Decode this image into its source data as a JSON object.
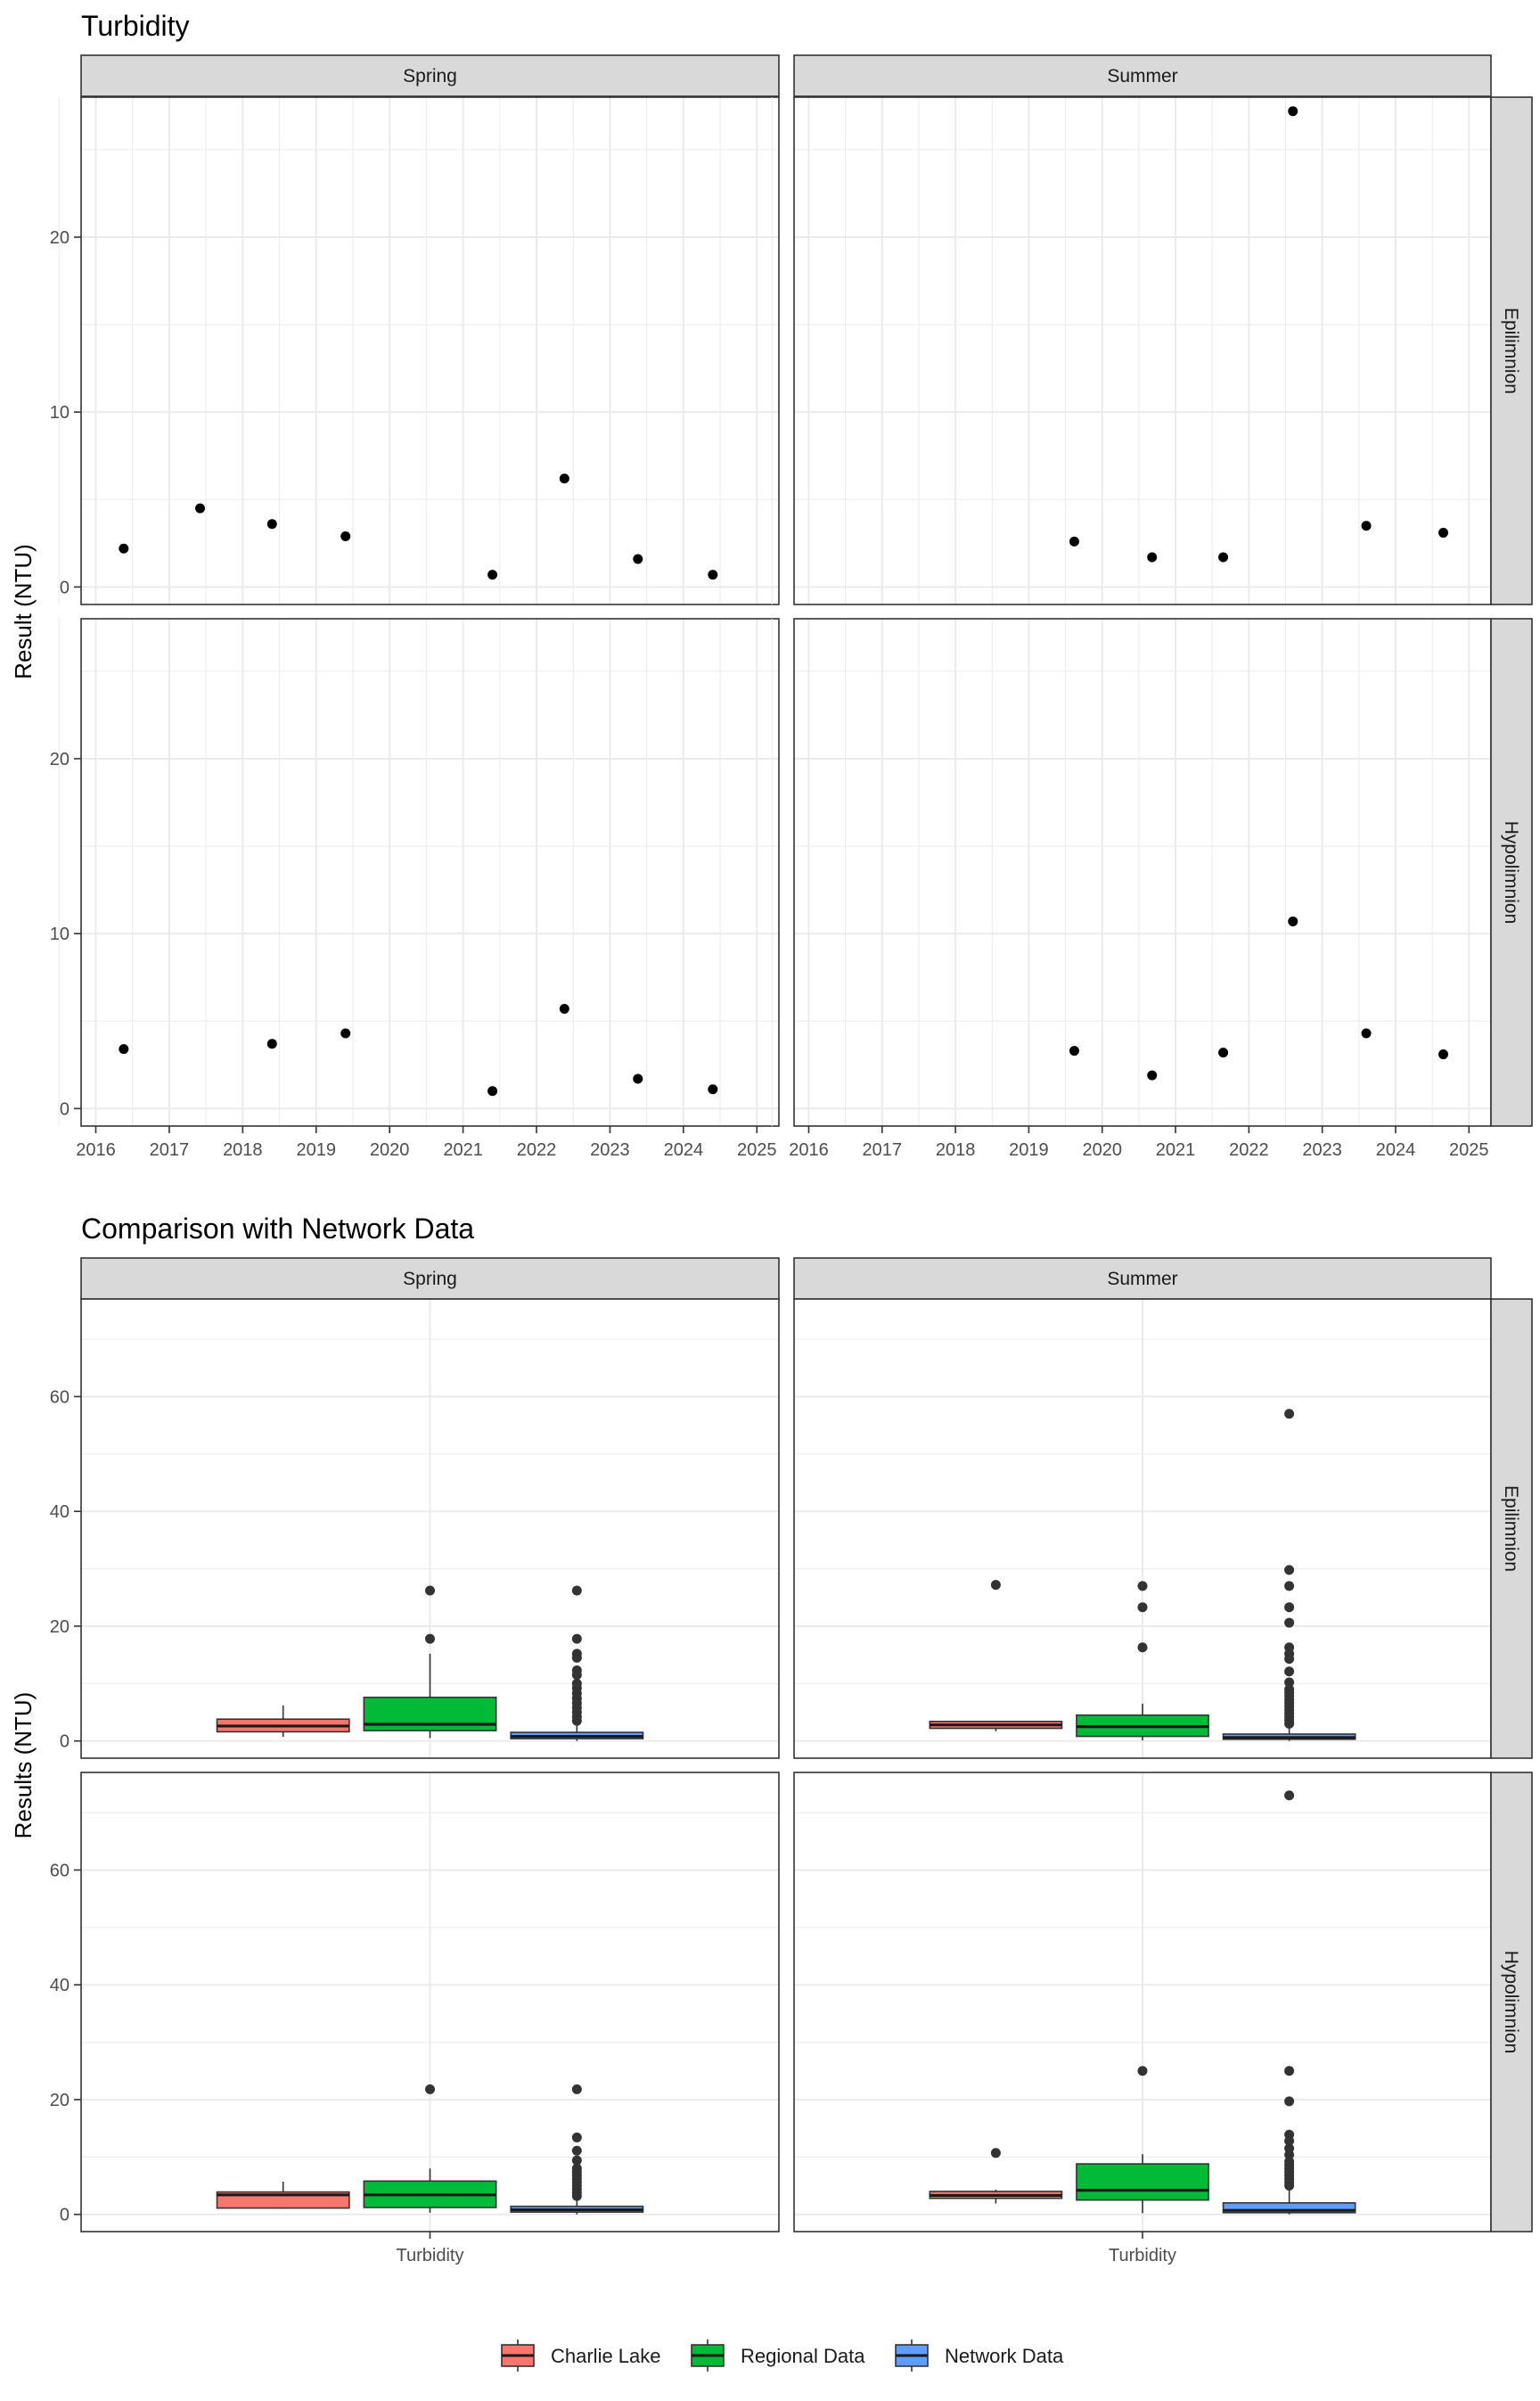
{
  "chart_data": [
    {
      "type": "scatter",
      "title": "Turbidity",
      "ylabel": "Result (NTU)",
      "xlabel": "",
      "ylim": [
        -1,
        28
      ],
      "xlim": [
        2015.8,
        2025.3
      ],
      "x_ticks": [
        2016,
        2017,
        2018,
        2019,
        2020,
        2021,
        2022,
        2023,
        2024,
        2025
      ],
      "y_ticks": [
        0,
        10,
        20
      ],
      "grid": true,
      "columns": [
        "Spring",
        "Summer"
      ],
      "rows": [
        "Epilimnion",
        "Hypolimnion"
      ],
      "panels": [
        {
          "col": "Spring",
          "row": "Epilimnion",
          "x": [
            2016.38,
            2017.42,
            2018.4,
            2019.4,
            2021.4,
            2022.38,
            2023.38,
            2024.4
          ],
          "y": [
            2.2,
            4.5,
            3.6,
            2.9,
            0.7,
            6.2,
            1.6,
            0.7
          ]
        },
        {
          "col": "Summer",
          "row": "Epilimnion",
          "x": [
            2019.62,
            2020.68,
            2021.65,
            2022.6,
            2023.6,
            2024.65
          ],
          "y": [
            2.6,
            1.7,
            1.7,
            27.2,
            3.5,
            3.1
          ]
        },
        {
          "col": "Spring",
          "row": "Hypolimnion",
          "x": [
            2016.38,
            2018.4,
            2019.4,
            2021.4,
            2022.38,
            2023.38,
            2024.4
          ],
          "y": [
            3.4,
            3.7,
            4.3,
            1.0,
            5.7,
            1.7,
            1.1
          ]
        },
        {
          "col": "Summer",
          "row": "Hypolimnion",
          "x": [
            2019.62,
            2020.68,
            2021.65,
            2022.6,
            2023.6,
            2024.65
          ],
          "y": [
            3.3,
            1.9,
            3.2,
            10.7,
            4.3,
            3.1
          ]
        }
      ]
    },
    {
      "type": "box",
      "title": "Comparison with Network Data",
      "ylabel": "Results (NTU)",
      "xlabel": "",
      "ylim": [
        -3,
        77
      ],
      "y_ticks": [
        0,
        20,
        40,
        60
      ],
      "categories": [
        "Turbidity"
      ],
      "grid": true,
      "columns": [
        "Spring",
        "Summer"
      ],
      "rows": [
        "Epilimnion",
        "Hypolimnion"
      ],
      "legend_position": "bottom",
      "series": [
        {
          "name": "Charlie Lake",
          "color": "#F8766D"
        },
        {
          "name": "Regional Data",
          "color": "#00BA38"
        },
        {
          "name": "Network Data",
          "color": "#619CFF"
        }
      ],
      "panels": [
        {
          "col": "Spring",
          "row": "Epilimnion",
          "boxes": [
            {
              "series": "Charlie Lake",
              "q1": 1.6,
              "median": 2.6,
              "q3": 3.8,
              "lower": 0.7,
              "upper": 6.2,
              "outliers": []
            },
            {
              "series": "Regional Data",
              "q1": 1.8,
              "median": 2.9,
              "q3": 7.6,
              "lower": 0.5,
              "upper": 15.2,
              "outliers": [
                17.8,
                26.2
              ]
            },
            {
              "series": "Network Data",
              "q1": 0.4,
              "median": 0.8,
              "q3": 1.5,
              "lower": 0.0,
              "upper": 3.0,
              "outliers": [
                3.5,
                4.2,
                5.0,
                5.8,
                6.6,
                7.4,
                8.3,
                9.2,
                10.0,
                11.5,
                12.3,
                14.5,
                15.2,
                17.8,
                26.2
              ]
            }
          ]
        },
        {
          "col": "Summer",
          "row": "Epilimnion",
          "boxes": [
            {
              "series": "Charlie Lake",
              "q1": 2.2,
              "median": 2.8,
              "q3": 3.4,
              "lower": 1.7,
              "upper": 3.5,
              "outliers": [
                27.2
              ]
            },
            {
              "series": "Regional Data",
              "q1": 0.8,
              "median": 2.5,
              "q3": 4.5,
              "lower": 0.1,
              "upper": 6.5,
              "outliers": [
                16.3,
                23.3,
                27.0
              ]
            },
            {
              "series": "Network Data",
              "q1": 0.3,
              "median": 0.6,
              "q3": 1.2,
              "lower": 0.0,
              "upper": 2.5,
              "outliers": [
                3.0,
                3.6,
                4.2,
                4.8,
                5.4,
                6.0,
                6.6,
                7.2,
                7.8,
                8.4,
                9.0,
                10.2,
                12.1,
                14.3,
                15.2,
                16.3,
                20.6,
                23.3,
                27.0,
                29.8,
                57.0
              ]
            }
          ]
        },
        {
          "col": "Spring",
          "row": "Hypolimnion",
          "boxes": [
            {
              "series": "Charlie Lake",
              "q1": 1.1,
              "median": 3.4,
              "q3": 3.9,
              "lower": 1.0,
              "upper": 5.7,
              "outliers": []
            },
            {
              "series": "Regional Data",
              "q1": 1.2,
              "median": 3.4,
              "q3": 5.8,
              "lower": 0.3,
              "upper": 8.0,
              "outliers": [
                21.8
              ]
            },
            {
              "series": "Network Data",
              "q1": 0.4,
              "median": 0.8,
              "q3": 1.4,
              "lower": 0.0,
              "upper": 2.8,
              "outliers": [
                3.2,
                3.8,
                4.4,
                5.0,
                5.6,
                6.2,
                6.8,
                7.4,
                8.0,
                9.4,
                11.1,
                13.4,
                21.8
              ]
            }
          ]
        },
        {
          "col": "Summer",
          "row": "Hypolimnion",
          "boxes": [
            {
              "series": "Charlie Lake",
              "q1": 2.8,
              "median": 3.3,
              "q3": 4.0,
              "lower": 1.9,
              "upper": 4.3,
              "outliers": [
                10.7
              ]
            },
            {
              "series": "Regional Data",
              "q1": 2.5,
              "median": 4.2,
              "q3": 8.8,
              "lower": 0.2,
              "upper": 10.5,
              "outliers": [
                25.0
              ]
            },
            {
              "series": "Network Data",
              "q1": 0.3,
              "median": 0.7,
              "q3": 2.0,
              "lower": 0.0,
              "upper": 4.5,
              "outliers": [
                5.0,
                5.6,
                6.2,
                6.8,
                7.4,
                8.0,
                8.6,
                9.2,
                10.4,
                11.5,
                12.8,
                13.9,
                19.7,
                25.0,
                73.0
              ]
            }
          ]
        }
      ]
    }
  ]
}
